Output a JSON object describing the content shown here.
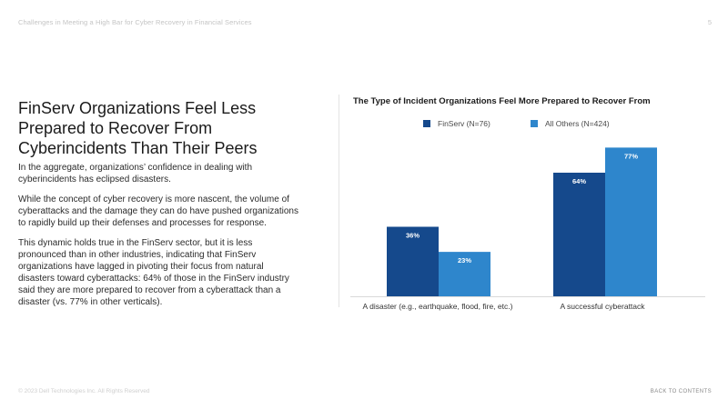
{
  "header": {
    "subtitle": "Challenges in Meeting a High Bar for Cyber Recovery in Financial Services",
    "page_number": "5"
  },
  "main": {
    "title": "FinServ Organizations Feel Less Prepared to Recover From Cyberincidents Than Their Peers",
    "paragraphs": [
      "In the aggregate, organizations’ confidence in dealing with cyberincidents has eclipsed disasters.",
      "While the concept of cyber recovery is more nascent, the volume of cyberattacks and the damage they can do have pushed organizations to rapidly build up their defenses and processes for response.",
      "This dynamic holds true in the FinServ sector, but it is less pronounced than in other industries, indicating that FinServ organizations have lagged in pivoting their focus from natural disasters toward cyberattacks: 64% of those in the FinServ industry said they are more prepared to recover from a cyberattack than a disaster (vs. 77% in other verticals)."
    ]
  },
  "footer": {
    "copyright": "© 2023 Dell Technologies Inc. All Rights Reserved",
    "back_link": "BACK TO CONTENTS"
  },
  "chart_data": {
    "type": "bar",
    "title": "The Type of Incident Organizations Feel More Prepared to Recover From",
    "categories": [
      "A disaster (e.g., earthquake, flood, fire, etc.)",
      "A successful cyberattack"
    ],
    "series": [
      {
        "name": "FinServ (N=76)",
        "values": [
          36,
          64
        ],
        "labels": [
          "36%",
          "64%"
        ],
        "color": "#15498c"
      },
      {
        "name": "All Others (N=424)",
        "values": [
          23,
          77
        ],
        "labels": [
          "23%",
          "77%"
        ],
        "color": "#2e86cc"
      }
    ],
    "ylim": [
      0,
      80
    ],
    "grid": false,
    "legend_position": "top"
  }
}
